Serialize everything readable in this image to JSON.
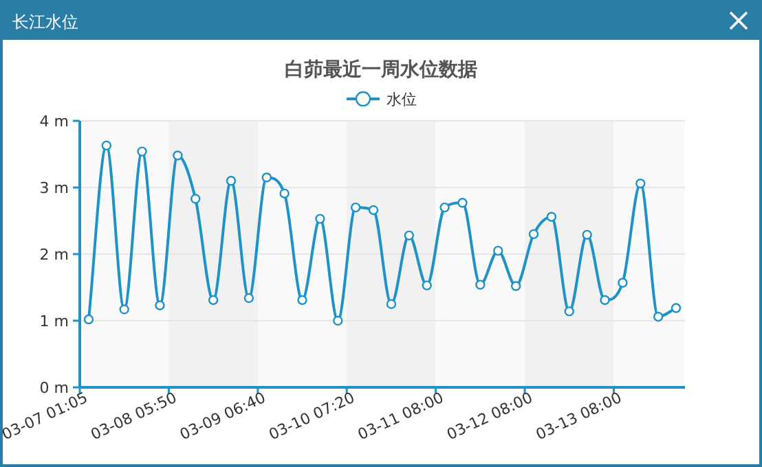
{
  "chart_data": {
    "type": "line",
    "title": "白茆最近一周水位数据",
    "annotations": [
      "长江水位"
    ],
    "categories": [
      "03-07 01:05",
      null,
      null,
      null,
      null,
      "03-08 05:50",
      null,
      null,
      null,
      null,
      "03-09 06:40",
      null,
      null,
      null,
      null,
      "03-10 07:20",
      null,
      null,
      null,
      null,
      "03-11 08:00",
      null,
      null,
      null,
      null,
      "03-12 08:00",
      null,
      null,
      null,
      null,
      "03-13 08:00",
      null,
      null,
      null
    ],
    "series": [
      {
        "name": "水位",
        "color": "#1f93c8",
        "values": [
          1.02,
          3.63,
          1.17,
          3.54,
          1.23,
          3.48,
          2.83,
          1.31,
          3.1,
          1.34,
          3.15,
          2.91,
          1.31,
          2.53,
          1.0,
          2.7,
          2.66,
          1.25,
          2.28,
          1.53,
          2.7,
          2.77,
          1.54,
          2.05,
          1.52,
          2.3,
          2.56,
          1.14,
          2.29,
          1.31,
          1.57,
          3.06,
          1.06,
          1.19
        ]
      }
    ],
    "ylim": [
      0,
      4
    ],
    "yticks": [
      {
        "value": 0,
        "label": "0 m"
      },
      {
        "value": 1,
        "label": "1 m"
      },
      {
        "value": 2,
        "label": "2 m"
      },
      {
        "value": 3,
        "label": "3 m"
      },
      {
        "value": 4,
        "label": "4 m"
      }
    ],
    "grid": "y",
    "legend": "top",
    "marker": "circle",
    "line_style": "solid"
  }
}
